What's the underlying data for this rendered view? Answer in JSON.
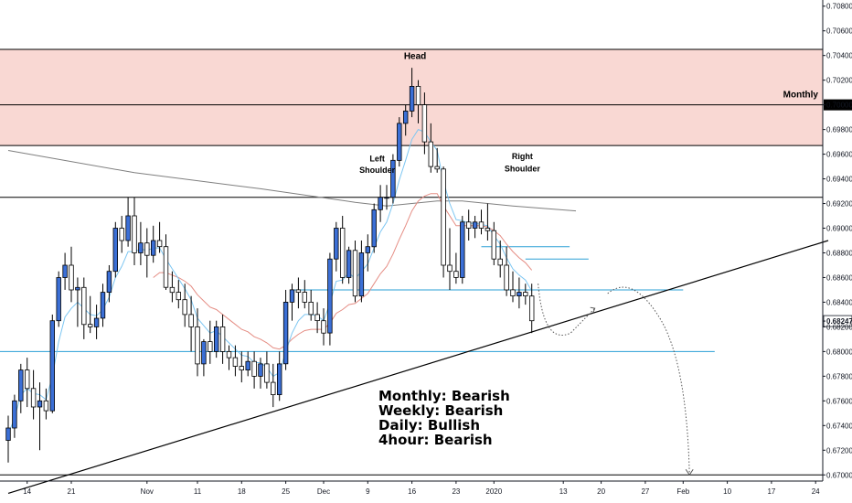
{
  "chart_data": {
    "type": "candlestick",
    "y_axis": {
      "min": 0.6695,
      "max": 0.7085,
      "tick_labels": [
        "0.70800",
        "0.70600",
        "0.70400",
        "0.70200",
        "0.70000",
        "0.69800",
        "0.69600",
        "0.69400",
        "0.69200",
        "0.69000",
        "0.68800",
        "0.68600",
        "0.68400",
        "0.68247",
        "0.68200",
        "0.68000",
        "0.67800",
        "0.67600",
        "0.67400",
        "0.67200",
        "0.67000"
      ],
      "tick_values": [
        0.708,
        0.706,
        0.704,
        0.702,
        0.7,
        0.698,
        0.696,
        0.694,
        0.692,
        0.69,
        0.688,
        0.686,
        0.684,
        0.68247,
        0.682,
        0.68,
        0.678,
        0.676,
        0.674,
        0.672,
        0.67
      ]
    },
    "x_axis": {
      "tick_labels": [
        "14",
        "21",
        "Nov",
        "11",
        "18",
        "25",
        "Dec",
        "9",
        "16",
        "23",
        "2020",
        "13",
        "20",
        "27",
        "Feb",
        "10",
        "17",
        "24"
      ],
      "tick_index": [
        3,
        10,
        22,
        30,
        37,
        44,
        50,
        57,
        64,
        71,
        77,
        88,
        94,
        101,
        107,
        114,
        121,
        128
      ]
    },
    "last_price": 0.68247,
    "colors": {
      "bull": "#3B6FD6",
      "bear": "#ffffff",
      "wick": "#000000",
      "zone": "#f9d8d3",
      "ema_fast": "#7cc6f2",
      "ema_slow": "#e58d84",
      "ma_long": "#7f7f7f",
      "hline_blue": "#2a9fd6"
    },
    "candles": [
      [
        0.6728,
        0.6748,
        0.671,
        0.6738
      ],
      [
        0.6738,
        0.6765,
        0.673,
        0.676
      ],
      [
        0.676,
        0.679,
        0.675,
        0.6785
      ],
      [
        0.6785,
        0.6795,
        0.6755,
        0.677
      ],
      [
        0.677,
        0.6785,
        0.6745,
        0.6755
      ],
      [
        0.6755,
        0.6775,
        0.672,
        0.676
      ],
      [
        0.676,
        0.677,
        0.6745,
        0.6752
      ],
      [
        0.6752,
        0.683,
        0.675,
        0.6825
      ],
      [
        0.6825,
        0.6865,
        0.682,
        0.686
      ],
      [
        0.686,
        0.688,
        0.685,
        0.687
      ],
      [
        0.687,
        0.6885,
        0.684,
        0.685
      ],
      [
        0.685,
        0.686,
        0.682,
        0.6852
      ],
      [
        0.6852,
        0.686,
        0.681,
        0.6822
      ],
      [
        0.6822,
        0.6845,
        0.6815,
        0.682
      ],
      [
        0.682,
        0.6838,
        0.681,
        0.6827
      ],
      [
        0.6827,
        0.6855,
        0.682,
        0.6848
      ],
      [
        0.6848,
        0.687,
        0.684,
        0.6865
      ],
      [
        0.6865,
        0.6905,
        0.686,
        0.69
      ],
      [
        0.69,
        0.691,
        0.688,
        0.689
      ],
      [
        0.689,
        0.6925,
        0.6885,
        0.691
      ],
      [
        0.691,
        0.6925,
        0.687,
        0.688
      ],
      [
        0.688,
        0.6905,
        0.687,
        0.6888
      ],
      [
        0.6888,
        0.69,
        0.686,
        0.6878
      ],
      [
        0.6878,
        0.6902,
        0.6872,
        0.689
      ],
      [
        0.689,
        0.6905,
        0.688,
        0.6885
      ],
      [
        0.6885,
        0.6895,
        0.685,
        0.6852
      ],
      [
        0.6852,
        0.6865,
        0.684,
        0.6848
      ],
      [
        0.6848,
        0.6858,
        0.6835,
        0.6842
      ],
      [
        0.6842,
        0.6855,
        0.682,
        0.683
      ],
      [
        0.683,
        0.6845,
        0.68,
        0.682
      ],
      [
        0.682,
        0.6835,
        0.678,
        0.679
      ],
      [
        0.679,
        0.681,
        0.678,
        0.6808
      ],
      [
        0.6808,
        0.6825,
        0.679,
        0.68
      ],
      [
        0.68,
        0.6825,
        0.6795,
        0.682
      ],
      [
        0.682,
        0.683,
        0.679,
        0.68
      ],
      [
        0.68,
        0.6805,
        0.6785,
        0.6795
      ],
      [
        0.6795,
        0.6805,
        0.678,
        0.6788
      ],
      [
        0.6788,
        0.68,
        0.6775,
        0.6785
      ],
      [
        0.6785,
        0.68,
        0.678,
        0.6792
      ],
      [
        0.6792,
        0.68,
        0.677,
        0.678
      ],
      [
        0.678,
        0.6795,
        0.677,
        0.679
      ],
      [
        0.679,
        0.68,
        0.677,
        0.6775
      ],
      [
        0.6775,
        0.679,
        0.6755,
        0.6765
      ],
      [
        0.6765,
        0.68,
        0.676,
        0.679
      ],
      [
        0.679,
        0.685,
        0.6785,
        0.684
      ],
      [
        0.684,
        0.6855,
        0.6825,
        0.685
      ],
      [
        0.685,
        0.686,
        0.6835,
        0.6848
      ],
      [
        0.6848,
        0.6858,
        0.6835,
        0.684
      ],
      [
        0.684,
        0.685,
        0.6825,
        0.683
      ],
      [
        0.683,
        0.684,
        0.6815,
        0.6825
      ],
      [
        0.6825,
        0.6835,
        0.6805,
        0.6815
      ],
      [
        0.6815,
        0.688,
        0.6805,
        0.6875
      ],
      [
        0.6875,
        0.6905,
        0.6865,
        0.69
      ],
      [
        0.69,
        0.691,
        0.6855,
        0.686
      ],
      [
        0.686,
        0.6885,
        0.6855,
        0.6882
      ],
      [
        0.6882,
        0.689,
        0.684,
        0.6845
      ],
      [
        0.6845,
        0.689,
        0.684,
        0.688
      ],
      [
        0.688,
        0.6895,
        0.6865,
        0.6885
      ],
      [
        0.6885,
        0.692,
        0.688,
        0.6915
      ],
      [
        0.6915,
        0.6935,
        0.6905,
        0.6925
      ],
      [
        0.6925,
        0.6935,
        0.6915,
        0.6925
      ],
      [
        0.6925,
        0.696,
        0.692,
        0.6955
      ],
      [
        0.6955,
        0.699,
        0.695,
        0.6985
      ],
      [
        0.6985,
        0.7,
        0.6975,
        0.6995
      ],
      [
        0.6995,
        0.703,
        0.699,
        0.7015
      ],
      [
        0.7015,
        0.702,
        0.6985,
        0.7
      ],
      [
        0.7,
        0.701,
        0.696,
        0.697
      ],
      [
        0.697,
        0.6985,
        0.6945,
        0.695
      ],
      [
        0.695,
        0.6965,
        0.6945,
        0.6948
      ],
      [
        0.6948,
        0.695,
        0.686,
        0.687
      ],
      [
        0.687,
        0.69,
        0.685,
        0.6865
      ],
      [
        0.6865,
        0.688,
        0.6855,
        0.686
      ],
      [
        0.686,
        0.691,
        0.6855,
        0.6905
      ],
      [
        0.6905,
        0.6915,
        0.689,
        0.69
      ],
      [
        0.69,
        0.691,
        0.6892,
        0.6905
      ],
      [
        0.6905,
        0.6915,
        0.6895,
        0.69
      ],
      [
        0.69,
        0.692,
        0.689,
        0.6898
      ],
      [
        0.6898,
        0.6905,
        0.687,
        0.6875
      ],
      [
        0.6875,
        0.689,
        0.686,
        0.687
      ],
      [
        0.687,
        0.6885,
        0.6845,
        0.685
      ],
      [
        0.685,
        0.6865,
        0.684,
        0.6845
      ],
      [
        0.6845,
        0.686,
        0.6835,
        0.6848
      ],
      [
        0.6848,
        0.6855,
        0.6838,
        0.6845
      ],
      [
        0.6845,
        0.6855,
        0.6815,
        0.6825
      ]
    ],
    "ema_fast": [
      0.6733,
      0.6746,
      0.6765,
      0.677,
      0.6766,
      0.6765,
      0.6761,
      0.678,
      0.6808,
      0.6828,
      0.6835,
      0.684,
      0.6835,
      0.683,
      0.6829,
      0.6834,
      0.6844,
      0.686,
      0.6869,
      0.6881,
      0.6881,
      0.6883,
      0.6882,
      0.6884,
      0.6884,
      0.6875,
      0.6867,
      0.6859,
      0.6851,
      0.6842,
      0.6827,
      0.6821,
      0.6815,
      0.6817,
      0.6812,
      0.6807,
      0.6802,
      0.6797,
      0.6796,
      0.6791,
      0.6791,
      0.6787,
      0.678,
      0.6783,
      0.68,
      0.6815,
      0.6825,
      0.683,
      0.683,
      0.6829,
      0.6825,
      0.6839,
      0.6857,
      0.6858,
      0.6864,
      0.6859,
      0.6865,
      0.6871,
      0.6884,
      0.6897,
      0.6905,
      0.692,
      0.6939,
      0.6955,
      0.6972,
      0.698,
      0.6978,
      0.697,
      0.6963,
      0.6938,
      0.692,
      0.6907,
      0.6906,
      0.6904,
      0.6904,
      0.6903,
      0.6902,
      0.6894,
      0.6887,
      0.6876,
      0.6867,
      0.6862,
      0.6858,
      0.6849
    ],
    "ema_slow": [
      null,
      null,
      null,
      null,
      null,
      null,
      null,
      null,
      null,
      null,
      null,
      null,
      null,
      null,
      null,
      null,
      null,
      null,
      null,
      null,
      null,
      null,
      null,
      0.686,
      0.6864,
      0.6864,
      0.6862,
      0.686,
      0.6857,
      0.6853,
      0.6846,
      0.6841,
      0.6836,
      0.6834,
      0.683,
      0.6826,
      0.6822,
      0.6818,
      0.6816,
      0.6812,
      0.681,
      0.6807,
      0.6803,
      0.6802,
      0.6805,
      0.681,
      0.6814,
      0.6817,
      0.6818,
      0.6818,
      0.6818,
      0.6823,
      0.6831,
      0.6834,
      0.6838,
      0.6839,
      0.6843,
      0.6847,
      0.6855,
      0.6863,
      0.6869,
      0.6879,
      0.6891,
      0.6902,
      0.6914,
      0.6922,
      0.6926,
      0.6928,
      0.6928,
      0.6918,
      0.691,
      0.6902,
      0.6902,
      0.6902,
      0.6902,
      0.6902,
      0.6901,
      0.6898,
      0.6894,
      0.6887,
      0.6881,
      0.6876,
      0.6872,
      0.6866
    ],
    "ma_long": [
      [
        0,
        0.6963
      ],
      [
        20,
        0.6945
      ],
      [
        40,
        0.6932
      ],
      [
        55,
        0.6921
      ],
      [
        60,
        0.6918
      ],
      [
        68,
        0.6922
      ],
      [
        72,
        0.6922
      ],
      [
        80,
        0.6918
      ],
      [
        90,
        0.6914
      ]
    ],
    "hlines": [
      {
        "name": "zone-top",
        "y": 0.7045,
        "x_start": 0
      },
      {
        "name": "monthly",
        "y": 0.7,
        "x_start": 0
      },
      {
        "name": "zone-bottom",
        "y": 0.6967,
        "x_start": 0
      },
      {
        "name": "neckline",
        "y": 0.6925,
        "x_start": 0
      },
      {
        "name": "blue-upper",
        "y": 0.685,
        "x_start": 45,
        "x_end": 107,
        "color": "blue"
      },
      {
        "name": "blue-lower",
        "y": 0.68,
        "x_start": 0,
        "x_end": 112,
        "color": "blue"
      },
      {
        "name": "bottom",
        "y": 0.67,
        "x_start": 0
      },
      {
        "name": "short-a",
        "y": 0.6885,
        "x_start": 75,
        "x_end": 89,
        "color": "blue"
      },
      {
        "name": "short-b",
        "y": 0.6875,
        "x_start": 82,
        "x_end": 92,
        "color": "blue"
      }
    ],
    "zone": {
      "top": 0.7045,
      "bottom": 0.6967
    },
    "trendline": {
      "p1": [
        0,
        0.6685
      ],
      "p2": [
        130,
        0.689
      ]
    },
    "projection": {
      "p1": [
        84,
        0.6855
      ],
      "p2": [
        88,
        0.6815
      ],
      "p3": [
        93,
        0.6835
      ],
      "p4": [
        98,
        0.685
      ],
      "p5": [
        108,
        0.67
      ]
    },
    "annotations": {
      "head": "Head",
      "left_shoulder_1": "Left",
      "left_shoulder_2": "Shoulder",
      "right_shoulder_1": "Right",
      "right_shoulder_2": "Shoulder",
      "monthly": "Monthly",
      "summary": [
        "Monthly: Bearish",
        "Weekly: Bearish",
        "Daily: Bullish",
        "4hour: Bearish"
      ]
    }
  }
}
